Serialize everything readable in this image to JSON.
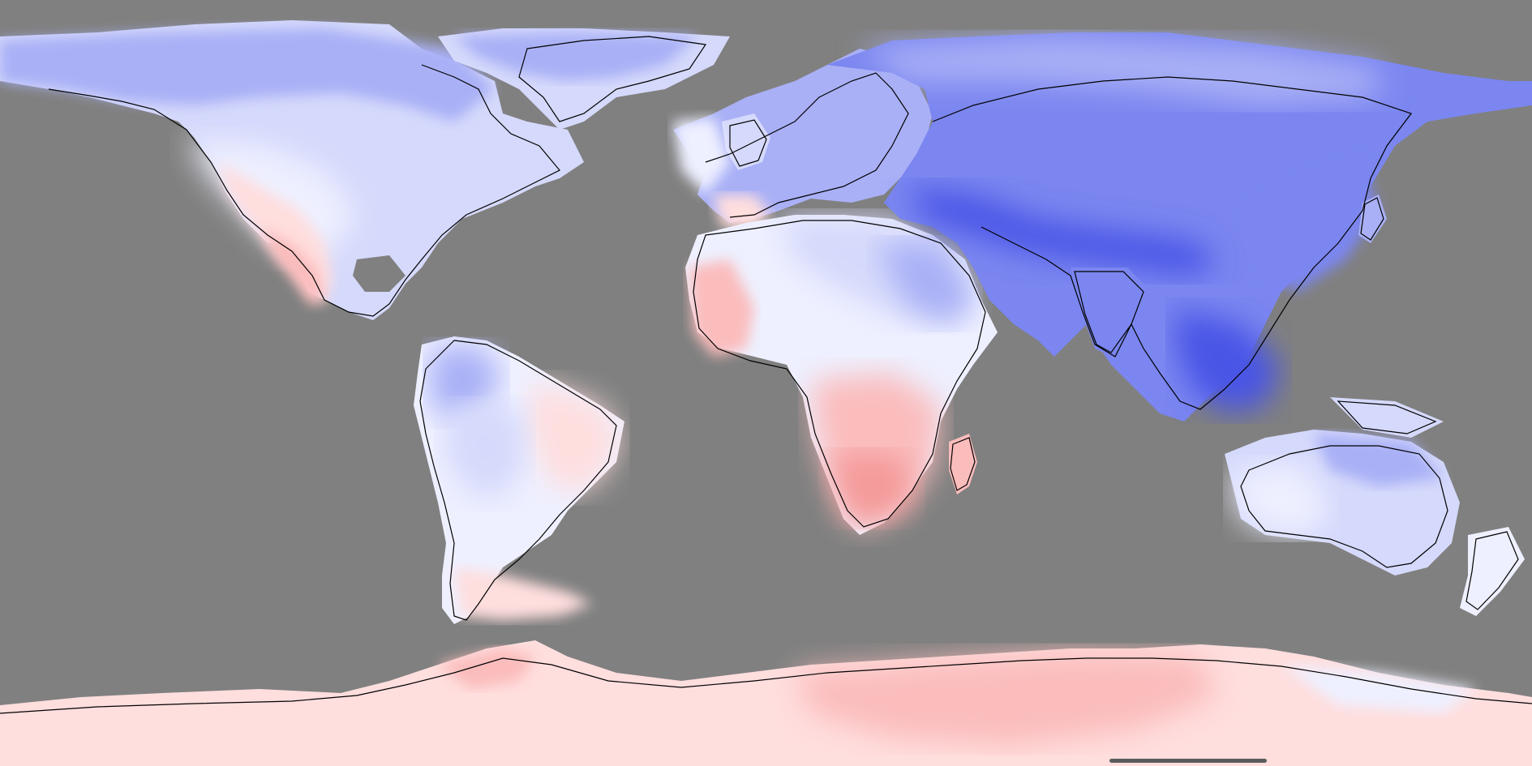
{
  "map": {
    "projection": "equirectangular",
    "ocean_color": "#808080",
    "coastline_color": "#000000",
    "palette": {
      "deep_blue": "#4a55e6",
      "blue": "#7b86f0",
      "light_blue": "#a9b0f6",
      "pale_blue": "#d5d9fb",
      "near_white": "#eef0ff",
      "pale_red": "#ffdede",
      "light_red": "#fbbcbc",
      "red": "#f49a9a"
    },
    "regions": [
      {
        "name": "north-america",
        "anomaly": "cool"
      },
      {
        "name": "greenland",
        "anomaly": "cool"
      },
      {
        "name": "south-america",
        "anomaly": "mixed"
      },
      {
        "name": "europe",
        "anomaly": "cool"
      },
      {
        "name": "africa",
        "anomaly": "mixed"
      },
      {
        "name": "asia",
        "anomaly": "strong-cool"
      },
      {
        "name": "australia",
        "anomaly": "cool"
      },
      {
        "name": "new-zealand",
        "anomaly": "cool"
      },
      {
        "name": "antarctica",
        "anomaly": "warm"
      }
    ]
  },
  "home_indicator": {
    "color": "#5c5c5c"
  }
}
